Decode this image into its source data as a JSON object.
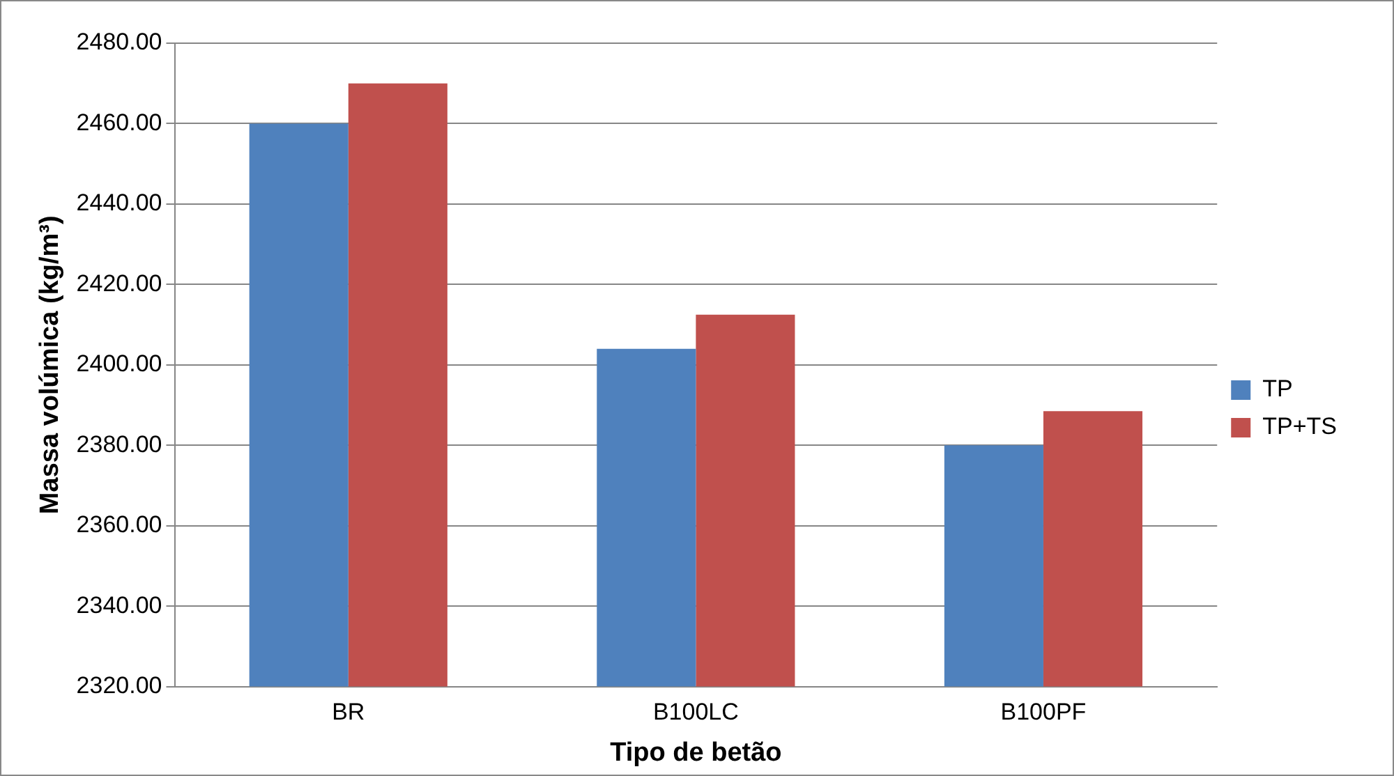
{
  "chart_data": {
    "type": "bar",
    "xlabel": "Tipo de betão",
    "ylabel": "Massa volúmica (kg/m³)",
    "categories": [
      "BR",
      "B100LC",
      "B100PF"
    ],
    "series": [
      {
        "name": "TP",
        "color": "#4f81bd",
        "values": [
          2460,
          2404,
          2380
        ]
      },
      {
        "name": "TP+TS",
        "color": "#c0504d",
        "values": [
          2470,
          2412.5,
          2388.5
        ]
      }
    ],
    "ylim": [
      2320,
      2480
    ],
    "yticks": [
      {
        "value": 2320,
        "label": "2320.00"
      },
      {
        "value": 2340,
        "label": "2340.00"
      },
      {
        "value": 2360,
        "label": "2360.00"
      },
      {
        "value": 2380,
        "label": "2380.00"
      },
      {
        "value": 2400,
        "label": "2400.00"
      },
      {
        "value": 2420,
        "label": "2420.00"
      },
      {
        "value": 2440,
        "label": "2440.00"
      },
      {
        "value": 2460,
        "label": "2460.00"
      },
      {
        "value": 2480,
        "label": "2480.00"
      }
    ],
    "grid": "y",
    "legend": "right"
  }
}
